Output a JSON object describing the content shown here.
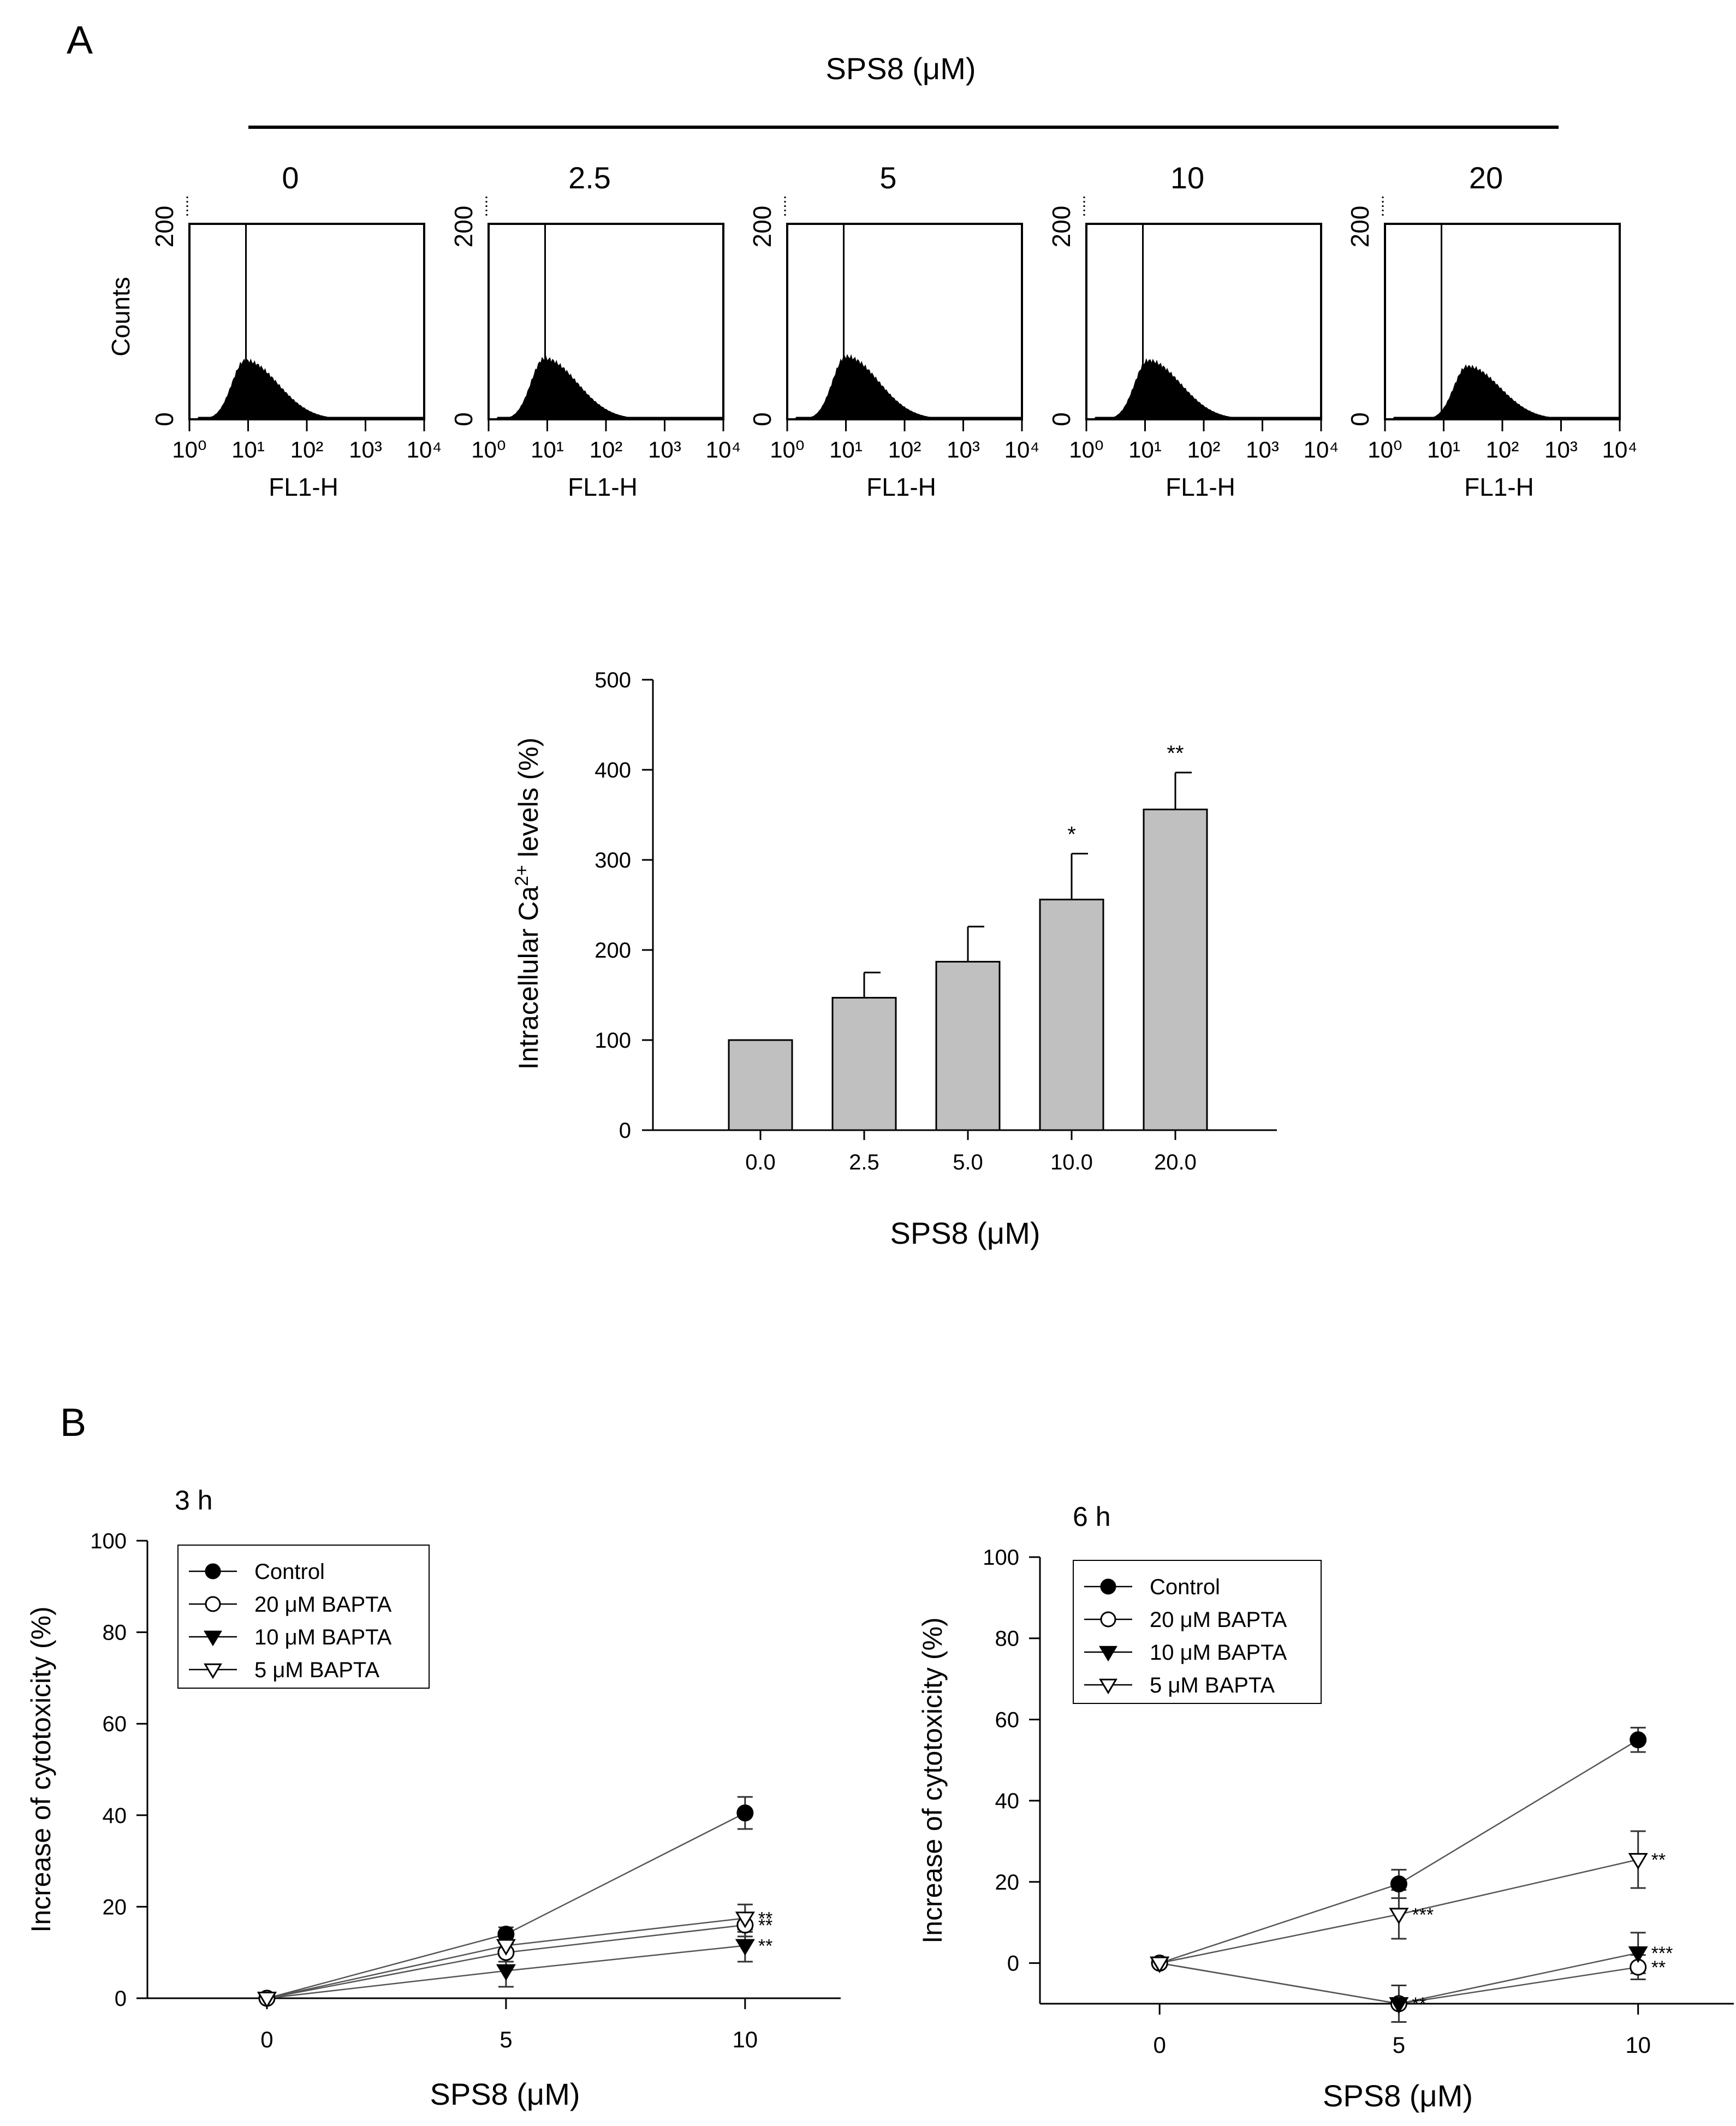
{
  "panel_a": {
    "label": "A",
    "header": "SPS8 (μM)",
    "histograms": {
      "ylabel": "Counts",
      "y_ticks": [
        "0",
        "200"
      ],
      "x_ticks": [
        "10⁰",
        "10¹",
        "10²",
        "10³",
        "10⁴"
      ],
      "xlabel": "FL1-H",
      "items": [
        {
          "label": "0",
          "peak_log10": 0.95,
          "peak_height_fraction": 0.3
        },
        {
          "label": "2.5",
          "peak_log10": 0.95,
          "peak_height_fraction": 0.31
        },
        {
          "label": "5",
          "peak_log10": 1.0,
          "peak_height_fraction": 0.32
        },
        {
          "label": "10",
          "peak_log10": 1.05,
          "peak_height_fraction": 0.3
        },
        {
          "label": "20",
          "peak_log10": 1.4,
          "peak_height_fraction": 0.27
        }
      ]
    }
  },
  "panel_b": {
    "label": "B"
  },
  "chart_data": [
    {
      "id": "calcium-bar",
      "type": "bar",
      "categories": [
        "0.0",
        "2.5",
        "5.0",
        "10.0",
        "20.0"
      ],
      "values": [
        100,
        147,
        187,
        256,
        356
      ],
      "errors": [
        0,
        28,
        39,
        51,
        41
      ],
      "annotations": [
        "",
        "",
        "",
        "*",
        "**"
      ],
      "xlabel": "SPS8 (μM)",
      "ylabel_main": "Intracellular Ca",
      "ylabel_sup": "2+",
      "ylabel_tail": " levels (%)",
      "ylim": [
        0,
        500
      ],
      "yticks": [
        "0",
        "100",
        "200",
        "300",
        "400",
        "500"
      ],
      "bar_color": "#c0c0c0"
    },
    {
      "id": "cytotox-3h",
      "type": "line",
      "title": "3 h",
      "x": [
        0,
        5,
        10
      ],
      "xticks": [
        "0",
        "5",
        "10"
      ],
      "xlim": [
        -2.5,
        12
      ],
      "ylim": [
        0,
        100
      ],
      "yticks": [
        "0",
        "20",
        "40",
        "60",
        "80",
        "100"
      ],
      "xlabel": "SPS8 (μM)",
      "ylabel": "Increase of cytotoxicity (%)",
      "legend_position": "top-left",
      "series": [
        {
          "name": "Control",
          "marker": "circle-filled",
          "values": [
            0,
            14,
            40.5
          ],
          "errors": [
            0,
            1.5,
            3.5
          ],
          "annotations": [
            "",
            "",
            ""
          ]
        },
        {
          "name": "20 μM BAPTA",
          "marker": "circle-open",
          "values": [
            0,
            10,
            16
          ],
          "errors": [
            0,
            2,
            2.5
          ],
          "annotations": [
            "",
            "",
            "**"
          ]
        },
        {
          "name": "10 μM BAPTA",
          "marker": "triangle-down-filled",
          "values": [
            0,
            6,
            11.5
          ],
          "errors": [
            0,
            3.5,
            3.5
          ],
          "annotations": [
            "",
            "",
            "**"
          ]
        },
        {
          "name": "5 μM BAPTA",
          "marker": "triangle-down-open",
          "values": [
            0,
            11.5,
            17.5
          ],
          "errors": [
            0,
            2,
            3
          ],
          "annotations": [
            "",
            "",
            "**"
          ]
        }
      ]
    },
    {
      "id": "cytotox-6h",
      "type": "line",
      "title": "6 h",
      "x": [
        0,
        5,
        10
      ],
      "xticks": [
        "0",
        "5",
        "10"
      ],
      "xlim": [
        -2.5,
        12
      ],
      "ylim": [
        -10,
        100
      ],
      "yticks": [
        "0",
        "20",
        "40",
        "60",
        "80",
        "100"
      ],
      "xlabel": "SPS8 (μM)",
      "ylabel": "Increase of cytotoxicity (%)",
      "legend_position": "top-left",
      "series": [
        {
          "name": "Control",
          "marker": "circle-filled",
          "values": [
            0,
            19.5,
            55
          ],
          "errors": [
            0,
            3.5,
            3
          ],
          "annotations": [
            "",
            "",
            ""
          ]
        },
        {
          "name": "20 μM BAPTA",
          "marker": "circle-open",
          "values": [
            0,
            -10,
            -1
          ],
          "errors": [
            0,
            0,
            3
          ],
          "annotations": [
            "",
            "",
            "**"
          ]
        },
        {
          "name": "10 μM BAPTA",
          "marker": "triangle-down-filled",
          "values": [
            0,
            -10,
            2.5
          ],
          "errors": [
            0,
            4.5,
            5
          ],
          "annotations": [
            "",
            "**",
            "***"
          ]
        },
        {
          "name": "5 μM BAPTA",
          "marker": "triangle-down-open",
          "values": [
            0,
            12,
            25.5
          ],
          "errors": [
            0,
            6,
            7
          ],
          "annotations": [
            "",
            "***",
            "**"
          ]
        }
      ]
    }
  ]
}
